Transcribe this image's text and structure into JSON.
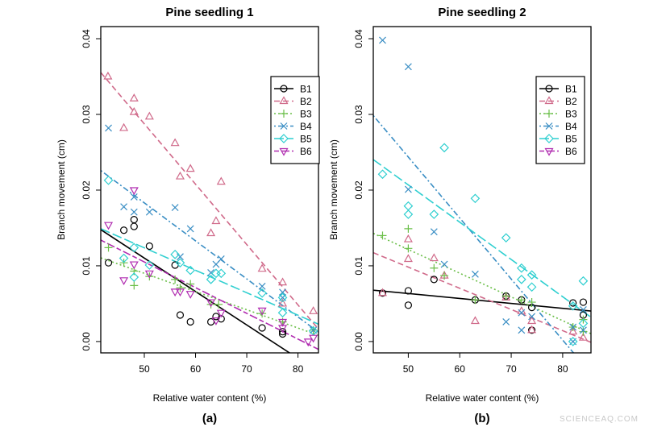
{
  "chart_data": [
    {
      "type": "scatter",
      "title": "Pine seedling 1",
      "xlabel": "Relative water content (%)",
      "ylabel": "Branch movement (cm)",
      "panel_label": "(a)",
      "xlim": [
        41.5,
        84
      ],
      "ylim": [
        -0.0015,
        0.0416
      ],
      "xticks": [
        "50",
        "60",
        "70",
        "80"
      ],
      "yticks": [
        "0.00",
        "0.01",
        "0.02",
        "0.03",
        "0.04"
      ],
      "grid": false,
      "legend_position": "top-right",
      "trendlines": "linear fit per series",
      "series": [
        {
          "name": "B1",
          "color": "#000000",
          "marker": "circle",
          "line": "solid",
          "points": [
            [
              43,
              0.0104
            ],
            [
              46,
              0.0147
            ],
            [
              48,
              0.0161
            ],
            [
              48,
              0.0152
            ],
            [
              51,
              0.0126
            ],
            [
              56,
              0.0101
            ],
            [
              57,
              0.0035
            ],
            [
              59,
              0.0026
            ],
            [
              63,
              0.0026
            ],
            [
              64,
              0.0033
            ],
            [
              65,
              0.003
            ],
            [
              73,
              0.0018
            ],
            [
              77,
              0.0013
            ],
            [
              77,
              0.001
            ]
          ]
        },
        {
          "name": "B2",
          "color": "#d06a8a",
          "marker": "triangle-up",
          "line": "dashed",
          "points": [
            [
              42.9,
              0.035
            ],
            [
              46,
              0.0282
            ],
            [
              48,
              0.0321
            ],
            [
              48,
              0.0303
            ],
            [
              51,
              0.0297
            ],
            [
              56,
              0.0262
            ],
            [
              57,
              0.0218
            ],
            [
              59,
              0.0228
            ],
            [
              63,
              0.0143
            ],
            [
              64,
              0.0159
            ],
            [
              65,
              0.0211
            ],
            [
              73,
              0.0096
            ],
            [
              77,
              0.0078
            ],
            [
              77,
              0.005
            ],
            [
              83,
              0.004
            ]
          ]
        },
        {
          "name": "B3",
          "color": "#6cbf4a",
          "marker": "plus",
          "line": "dotted",
          "points": [
            [
              43,
              0.0124
            ],
            [
              46,
              0.0104
            ],
            [
              48,
              0.0093
            ],
            [
              48,
              0.0074
            ],
            [
              51,
              0.0086
            ],
            [
              56,
              0.0082
            ],
            [
              57,
              0.0071
            ],
            [
              59,
              0.0076
            ],
            [
              63,
              0.0049
            ],
            [
              64.5,
              0.0049
            ],
            [
              73,
              0.0037
            ],
            [
              77,
              0.0026
            ],
            [
              83,
              0.0015
            ]
          ]
        },
        {
          "name": "B4",
          "color": "#3a8ec4",
          "marker": "cross",
          "line": "dotdash",
          "points": [
            [
              43,
              0.0282
            ],
            [
              46,
              0.0178
            ],
            [
              48,
              0.0191
            ],
            [
              48,
              0.0171
            ],
            [
              51,
              0.0171
            ],
            [
              56,
              0.0177
            ],
            [
              57,
              0.0112
            ],
            [
              59,
              0.0149
            ],
            [
              63,
              0.0091
            ],
            [
              64,
              0.0102
            ],
            [
              65,
              0.0109
            ],
            [
              73,
              0.0073
            ],
            [
              77,
              0.0065
            ],
            [
              77,
              0.0058
            ],
            [
              83,
              0.0015
            ]
          ]
        },
        {
          "name": "B5",
          "color": "#2fcfd0",
          "marker": "diamond",
          "line": "longdash",
          "points": [
            [
              43,
              0.0213
            ],
            [
              46,
              0.011
            ],
            [
              48,
              0.0124
            ],
            [
              48,
              0.0085
            ],
            [
              51,
              0.0101
            ],
            [
              56,
              0.0115
            ],
            [
              57,
              0.0104
            ],
            [
              59,
              0.0094
            ],
            [
              63,
              0.0082
            ],
            [
              64,
              0.009
            ],
            [
              65,
              0.009
            ],
            [
              73,
              0.0064
            ],
            [
              77,
              0.0038
            ],
            [
              77,
              0.0058
            ],
            [
              83,
              0.0014
            ]
          ]
        },
        {
          "name": "B6",
          "color": "#b02cb0",
          "marker": "triangle-down",
          "line": "twodash",
          "points": [
            [
              43,
              0.0154
            ],
            [
              46,
              0.0081
            ],
            [
              48,
              0.02
            ],
            [
              48,
              0.0102
            ],
            [
              51,
              0.009
            ],
            [
              56,
              0.0066
            ],
            [
              57,
              0.0066
            ],
            [
              59,
              0.0063
            ],
            [
              63,
              0.0052
            ],
            [
              64,
              0.0028
            ],
            [
              65,
              0.0038
            ],
            [
              73,
              0.0041
            ],
            [
              77,
              0.0026
            ],
            [
              77,
              0.0018
            ],
            [
              82,
              0.0
            ],
            [
              83,
              0.0005
            ]
          ]
        }
      ]
    },
    {
      "type": "scatter",
      "title": "Pine seedling 2",
      "xlabel": "Relative water content (%)",
      "ylabel": "Branch movement (cm)",
      "panel_label": "(b)",
      "xlim": [
        43.2,
        85.5
      ],
      "ylim": [
        -0.0015,
        0.0416
      ],
      "xticks": [
        "50",
        "60",
        "70",
        "80"
      ],
      "yticks": [
        "0.00",
        "0.01",
        "0.02",
        "0.03",
        "0.04"
      ],
      "grid": false,
      "legend_position": "top-right",
      "trendlines": "linear fit per series",
      "series": [
        {
          "name": "B1",
          "color": "#000000",
          "marker": "circle",
          "line": "solid",
          "points": [
            [
              45,
              0.0064
            ],
            [
              50,
              0.0067
            ],
            [
              50,
              0.0048
            ],
            [
              55,
              0.0082
            ],
            [
              63,
              0.0055
            ],
            [
              69,
              0.006
            ],
            [
              72,
              0.0055
            ],
            [
              74,
              0.0045
            ],
            [
              74,
              0.0015
            ],
            [
              82,
              0.0051
            ],
            [
              84,
              0.0052
            ],
            [
              84,
              0.0035
            ]
          ]
        },
        {
          "name": "B2",
          "color": "#d06a8a",
          "marker": "triangle-up",
          "line": "dashed",
          "points": [
            [
              45,
              0.0064
            ],
            [
              50,
              0.0135
            ],
            [
              50,
              0.0109
            ],
            [
              55,
              0.011
            ],
            [
              57,
              0.0087
            ],
            [
              63,
              0.0027
            ],
            [
              69,
              0.0058
            ],
            [
              72,
              0.004
            ],
            [
              74,
              0.0027
            ],
            [
              74,
              0.0015
            ],
            [
              82,
              0.0013
            ],
            [
              84,
              0.0005
            ]
          ]
        },
        {
          "name": "B3",
          "color": "#6cbf4a",
          "marker": "plus",
          "line": "dotted",
          "points": [
            [
              45,
              0.014
            ],
            [
              50,
              0.0149
            ],
            [
              50,
              0.0123
            ],
            [
              55,
              0.0097
            ],
            [
              57,
              0.0087
            ],
            [
              63,
              0.0055
            ],
            [
              69,
              0.006
            ],
            [
              72,
              0.0055
            ],
            [
              74,
              0.0052
            ],
            [
              82,
              0.0019
            ],
            [
              84,
              0.0029
            ],
            [
              84,
              0.0013
            ]
          ]
        },
        {
          "name": "B4",
          "color": "#3a8ec4",
          "marker": "cross",
          "line": "dotdash",
          "points": [
            [
              45,
              0.0398
            ],
            [
              50,
              0.0363
            ],
            [
              50,
              0.0201
            ],
            [
              55,
              0.0145
            ],
            [
              57,
              0.0102
            ],
            [
              63,
              0.0089
            ],
            [
              69,
              0.0026
            ],
            [
              72,
              0.0015
            ],
            [
              72,
              0.0038
            ],
            [
              74,
              0.0033
            ],
            [
              82,
              0.0019
            ],
            [
              82,
              0.0
            ],
            [
              84,
              0.0042
            ],
            [
              84,
              0.0015
            ]
          ]
        },
        {
          "name": "B5",
          "color": "#2fcfd0",
          "marker": "diamond",
          "line": "longdash",
          "points": [
            [
              45,
              0.0221
            ],
            [
              50,
              0.0179
            ],
            [
              50,
              0.0168
            ],
            [
              55,
              0.0168
            ],
            [
              57,
              0.0256
            ],
            [
              63,
              0.0189
            ],
            [
              69,
              0.0137
            ],
            [
              72,
              0.0097
            ],
            [
              72,
              0.0082
            ],
            [
              74,
              0.0088
            ],
            [
              74,
              0.0072
            ],
            [
              82,
              0.0047
            ],
            [
              82,
              0.0
            ],
            [
              84,
              0.008
            ],
            [
              84,
              0.0024
            ]
          ]
        },
        {
          "name": "B6",
          "color": "#b02cb0",
          "marker": "triangle-down",
          "line": "twodash",
          "points": []
        }
      ]
    }
  ],
  "watermark": "SCIENCEAQ.COM"
}
